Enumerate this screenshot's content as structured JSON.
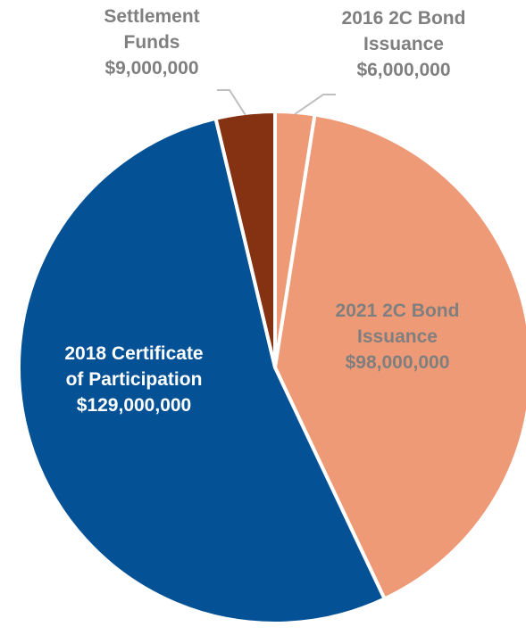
{
  "chart_data": {
    "type": "pie",
    "title": "",
    "legend": "none",
    "slices": [
      {
        "label_lines": [
          "2016 2C Bond",
          "Issuance"
        ],
        "value_label": "$6,000,000",
        "value": 6000000,
        "color": "#EE9A76"
      },
      {
        "label_lines": [
          "2021 2C Bond",
          "Issuance"
        ],
        "value_label": "$98,000,000",
        "value": 98000000,
        "color": "#EE9A76"
      },
      {
        "label_lines": [
          "2018 Certificate",
          "of Participation"
        ],
        "value_label": "$129,000,000",
        "value": 129000000,
        "color": "#045295"
      },
      {
        "label_lines": [
          "Settlement",
          "Funds"
        ],
        "value_label": "$9,000,000",
        "value": 9000000,
        "color": "#843212"
      }
    ]
  },
  "colors": {
    "outside_label": "#7f7f7f",
    "leader_line": "#bfbfbf",
    "slice_border": "#ffffff"
  }
}
